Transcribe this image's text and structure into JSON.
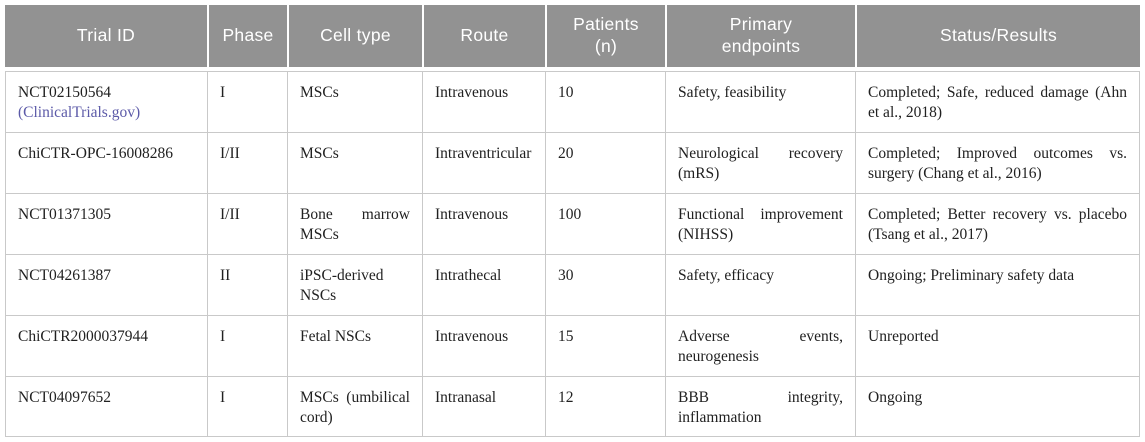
{
  "colors": {
    "header_bg": "#929292",
    "header_text": "#ffffff",
    "body_text": "#212121",
    "border": "#c9c9c9",
    "link": "#5c5aa8",
    "page_bg": "#ffffff"
  },
  "table": {
    "header": [
      {
        "line1": "Trial ID"
      },
      {
        "line1": "Phase"
      },
      {
        "line1": "Cell type"
      },
      {
        "line1": "Route"
      },
      {
        "line1": "Patients",
        "line2": "(n)"
      },
      {
        "line1": "Primary",
        "line2": "endpoints"
      },
      {
        "line1": "Status/Results"
      }
    ],
    "rows": [
      {
        "trial_id": "NCT02150564",
        "trial_link": "(ClinicalTrials.gov)",
        "phase": "I",
        "cell_type": "MSCs",
        "route": "Intravenous",
        "patients": "10",
        "endpoints": "Safety, feasibility",
        "status": "Completed; Safe, reduced damage (Ahn et al., 2018)"
      },
      {
        "trial_id": "ChiCTR-OPC-16008286",
        "phase": "I/II",
        "cell_type": "MSCs",
        "route": "Intraventricular",
        "patients": "20",
        "endpoints": "Neurological recovery (mRS)",
        "status": "Completed; Improved outcomes vs. surgery (Chang et al., 2016)"
      },
      {
        "trial_id": "NCT01371305",
        "phase": "I/II",
        "cell_type": "Bone marrow MSCs",
        "route": "Intravenous",
        "patients": "100",
        "endpoints": "Functional improvement (NIHSS)",
        "status": "Completed; Better recovery vs. placebo (Tsang et al., 2017)"
      },
      {
        "trial_id": "NCT04261387",
        "phase": "II",
        "cell_type": "iPSC-derived NSCs",
        "route": "Intrathecal",
        "patients": "30",
        "endpoints": "Safety, efficacy",
        "status": "Ongoing; Preliminary safety data"
      },
      {
        "trial_id": "ChiCTR2000037944",
        "phase": "I",
        "cell_type": "Fetal NSCs",
        "route": "Intravenous",
        "patients": "15",
        "endpoints": "Adverse events, neurogenesis",
        "status": "Unreported"
      },
      {
        "trial_id": "NCT04097652",
        "phase": "I",
        "cell_type": "MSCs (umbilical cord)",
        "route": "Intranasal",
        "patients": "12",
        "endpoints": "BBB integrity, inflammation",
        "status": "Ongoing"
      }
    ]
  }
}
